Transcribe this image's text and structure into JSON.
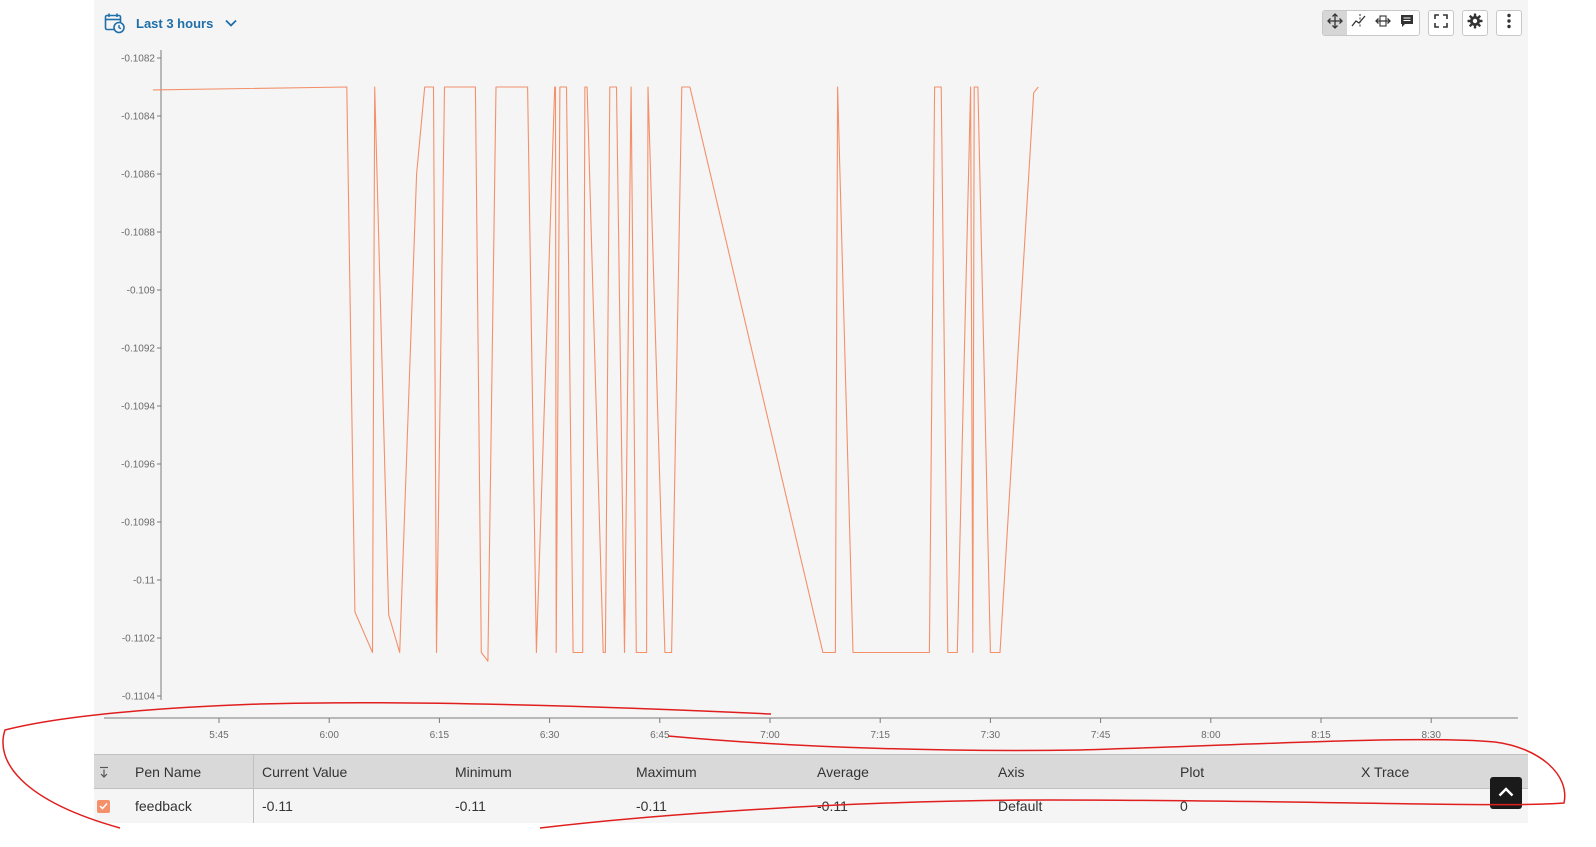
{
  "header": {
    "date_range_label": "Last 3 hours"
  },
  "toolbar": {
    "tools": [
      "pan-icon",
      "x-trace-icon",
      "zoom-x-icon",
      "annotation-icon"
    ],
    "active_tool": "pan-icon",
    "extra": [
      "fullscreen-icon",
      "gear-icon",
      "more-vertical-icon"
    ]
  },
  "colors": {
    "pen": "#f4906a",
    "accent": "#1f6fa8"
  },
  "chart_data": {
    "type": "line",
    "title": "",
    "xlabel": "",
    "ylabel": "",
    "x_tick_labels": [
      "5:45",
      "6:00",
      "6:15",
      "6:30",
      "6:45",
      "7:00",
      "7:15",
      "7:30",
      "7:45",
      "8:00",
      "8:15",
      "8:30"
    ],
    "y_tick_labels": [
      "-0.1082",
      "-0.1084",
      "-0.1086",
      "-0.1088",
      "-0.109",
      "-0.1092",
      "-0.1094",
      "-0.1096",
      "-0.1098",
      "-0.11",
      "-0.1102",
      "-0.1104"
    ],
    "ylim": [
      -0.1104,
      -0.1082
    ],
    "xlim_minutes_of_day": [
      335,
      457
    ],
    "series": [
      {
        "name": "feedback",
        "x_minutes_of_day": [
          336.0,
          362.4,
          363.5,
          365.9,
          366.2,
          368.1,
          369.6,
          371.9,
          373.0,
          374.2,
          374.6,
          375.7,
          379.9,
          380.7,
          381.6,
          382.7,
          387.0,
          388.2,
          390.7,
          390.8,
          390.9,
          391.4,
          392.3,
          393.2,
          394.5,
          394.8,
          395.1,
          397.3,
          397.6,
          398.2,
          399.1,
          400.2,
          401.1,
          401.8,
          403.2,
          403.4,
          405.7,
          406.6,
          408.0,
          409.1,
          427.2,
          428.9,
          429.2,
          431.3,
          441.7,
          442.4,
          443.3,
          444.2,
          445.5,
          447.3,
          447.6,
          447.8,
          448.3,
          450.0,
          451.3,
          455.9,
          456.5
        ],
        "values": [
          -0.10831,
          -0.1083,
          -0.11011,
          -0.11025,
          -0.1083,
          -0.11012,
          -0.11025,
          -0.1086,
          -0.1083,
          -0.1083,
          -0.11025,
          -0.1083,
          -0.1083,
          -0.11025,
          -0.11028,
          -0.1083,
          -0.1083,
          -0.11025,
          -0.1083,
          -0.1083,
          -0.11025,
          -0.1083,
          -0.1083,
          -0.11025,
          -0.11025,
          -0.1083,
          -0.1083,
          -0.11025,
          -0.11025,
          -0.1083,
          -0.1083,
          -0.11025,
          -0.1083,
          -0.11025,
          -0.11025,
          -0.1083,
          -0.11025,
          -0.11025,
          -0.1083,
          -0.1083,
          -0.11025,
          -0.11025,
          -0.1083,
          -0.11025,
          -0.11025,
          -0.1083,
          -0.1083,
          -0.11025,
          -0.11025,
          -0.1083,
          -0.11025,
          -0.1083,
          -0.1083,
          -0.11025,
          -0.11025,
          -0.10832,
          -0.1083
        ]
      }
    ],
    "grid": false
  },
  "table": {
    "columns": [
      "Pen Name",
      "Current Value",
      "Minimum",
      "Maximum",
      "Average",
      "Axis",
      "Plot",
      "X Trace"
    ],
    "rows": [
      {
        "checked": true,
        "pen_name": "feedback",
        "current_value": "-0.11",
        "minimum": "-0.11",
        "maximum": "-0.11",
        "average": "-0.11",
        "axis": "Default",
        "plot": "0",
        "x_trace": ""
      }
    ]
  }
}
